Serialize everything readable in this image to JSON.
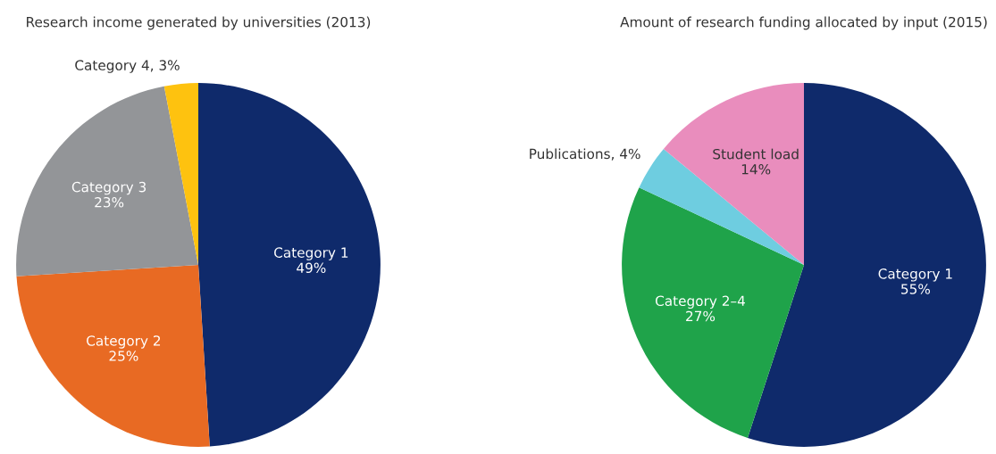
{
  "chart_data": [
    {
      "type": "pie",
      "title": "Research income generated by universities (2013)",
      "categories": [
        "Category 1",
        "Category 2",
        "Category 3",
        "Category 4"
      ],
      "values": [
        49,
        25,
        23,
        3
      ],
      "colors": [
        "#0f2a6b",
        "#e86a23",
        "#939598",
        "#fec20f"
      ],
      "value_labels": [
        "49%",
        "25%",
        "23%",
        "3%"
      ]
    },
    {
      "type": "pie",
      "title": "Amount of research funding allocated by input (2015)",
      "categories": [
        "Category 1",
        "Category 2–4",
        "Publications",
        "Student load"
      ],
      "values": [
        55,
        27,
        4,
        14
      ],
      "colors": [
        "#0f2a6b",
        "#1fa34a",
        "#6ecde0",
        "#e98dbd"
      ],
      "value_labels": [
        "55%",
        "27%",
        "4%",
        "14%"
      ]
    }
  ]
}
